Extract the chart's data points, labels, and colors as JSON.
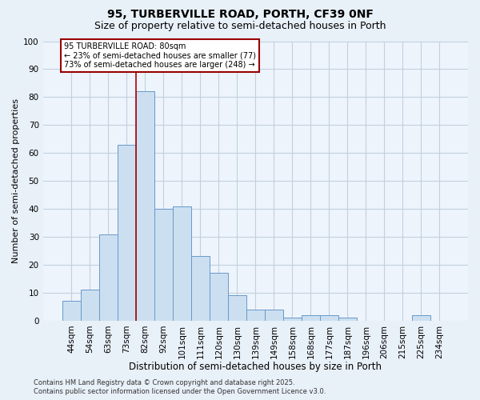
{
  "title_line1": "95, TURBERVILLE ROAD, PORTH, CF39 0NF",
  "title_line2": "Size of property relative to semi-detached houses in Porth",
  "categories": [
    "44sqm",
    "54sqm",
    "63sqm",
    "73sqm",
    "82sqm",
    "92sqm",
    "101sqm",
    "111sqm",
    "120sqm",
    "130sqm",
    "139sqm",
    "149sqm",
    "158sqm",
    "168sqm",
    "177sqm",
    "187sqm",
    "196sqm",
    "206sqm",
    "215sqm",
    "225sqm",
    "234sqm"
  ],
  "values": [
    7,
    11,
    31,
    63,
    82,
    40,
    41,
    23,
    17,
    9,
    4,
    4,
    1,
    2,
    2,
    1,
    0,
    0,
    0,
    2,
    0
  ],
  "bar_color": "#ccdff0",
  "bar_edge_color": "#6699cc",
  "red_line_x": 3.5,
  "red_line_color": "#aa0000",
  "xlabel": "Distribution of semi-detached houses by size in Porth",
  "ylabel": "Number of semi-detached properties",
  "ylim": [
    0,
    100
  ],
  "yticks": [
    0,
    10,
    20,
    30,
    40,
    50,
    60,
    70,
    80,
    90,
    100
  ],
  "grid_color": "#c0d0e0",
  "bg_color": "#e8f0f8",
  "plot_bg_color": "#eef4fb",
  "annotation_title": "95 TURBERVILLE ROAD: 80sqm",
  "annotation_line1": "← 23% of semi-detached houses are smaller (77)",
  "annotation_line2": "73% of semi-detached houses are larger (248) →",
  "annotation_box_facecolor": "#ffffff",
  "annotation_box_edgecolor": "#990000",
  "footer_line1": "Contains HM Land Registry data © Crown copyright and database right 2025.",
  "footer_line2": "Contains public sector information licensed under the Open Government Licence v3.0.",
  "title_fontsize": 10,
  "subtitle_fontsize": 9,
  "tick_fontsize": 7.5,
  "ylabel_fontsize": 8,
  "xlabel_fontsize": 8.5,
  "footer_fontsize": 6
}
